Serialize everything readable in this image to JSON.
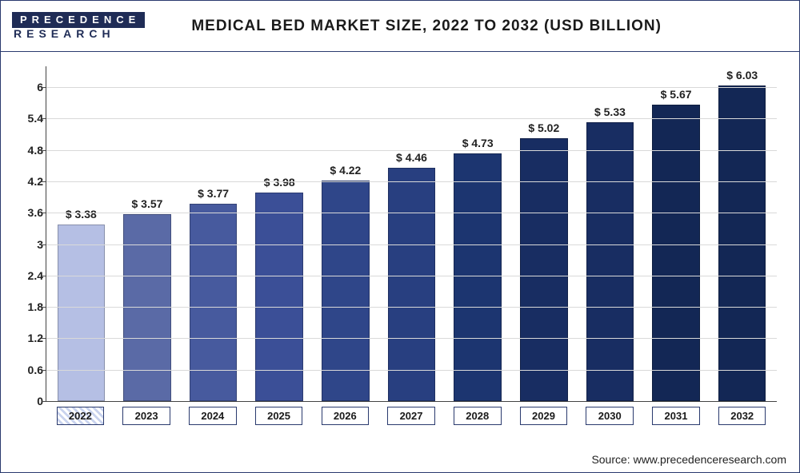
{
  "logo": {
    "line1": "PRECEDENCE",
    "line2": "RESEARCH"
  },
  "title": "MEDICAL BED MARKET SIZE, 2022 TO 2032 (USD BILLION)",
  "source_prefix": "Source: ",
  "source_url": "www.precedenceresearch.com",
  "chart": {
    "type": "bar",
    "ylim": [
      0,
      6.4
    ],
    "ytick_step": 0.6,
    "yticks": [
      "0",
      "0.6",
      "1.2",
      "1.8",
      "2.4",
      "3",
      "3.6",
      "4.2",
      "4.8",
      "5.4",
      "6"
    ],
    "grid_color": "#d9d9d9",
    "background_color": "#ffffff",
    "label_prefix": "$ ",
    "years": [
      "2022",
      "2023",
      "2024",
      "2025",
      "2026",
      "2027",
      "2028",
      "2029",
      "2030",
      "2031",
      "2032"
    ],
    "values": [
      3.38,
      3.57,
      3.77,
      3.98,
      4.22,
      4.46,
      4.73,
      5.02,
      5.33,
      5.67,
      6.03
    ],
    "bar_colors": [
      "#b5bfe4",
      "#5a6aa6",
      "#475a9e",
      "#3b4f97",
      "#2f4689",
      "#283f80",
      "#1c3570",
      "#182d62",
      "#182d62",
      "#132755",
      "#132755"
    ],
    "bar_width": 0.72,
    "label_fontsize": 14,
    "title_fontsize": 19
  }
}
